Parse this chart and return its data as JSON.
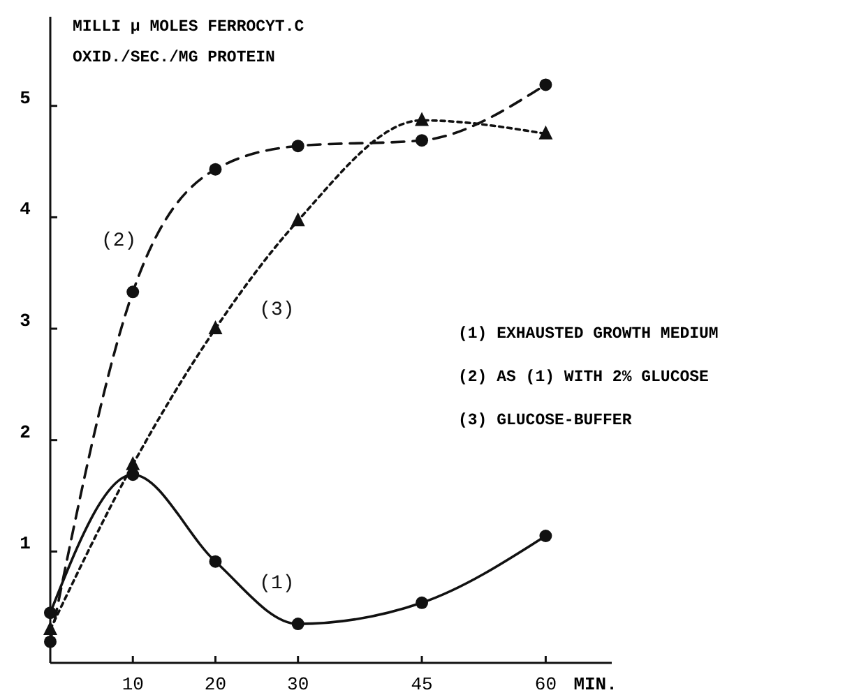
{
  "chart_data": {
    "type": "line",
    "ylabel": "MILLI μ MOLES FERROCYT.C\nOXID./SEC./MG PROTEIN",
    "xlabel": "MIN.",
    "x": [
      0,
      10,
      20,
      30,
      45,
      60
    ],
    "xlim": [
      0,
      68
    ],
    "xticks": [
      10,
      20,
      30,
      45,
      60
    ],
    "ylim": [
      0,
      5.8
    ],
    "yticks": [
      1,
      2,
      3,
      4,
      5
    ],
    "grid": false,
    "series": [
      {
        "name": "(1)",
        "color": "#111111",
        "values": [
          0.45,
          1.69,
          0.91,
          0.35,
          0.54,
          1.14
        ],
        "marker": "circle",
        "line_style": "solid"
      },
      {
        "name": "(2)",
        "color": "#111111",
        "values": [
          0.19,
          3.33,
          4.43,
          4.64,
          4.69,
          5.19
        ],
        "marker": "circle",
        "line_style": "dashed"
      },
      {
        "name": "(3)",
        "color": "#111111",
        "values": [
          0.3,
          1.78,
          3.0,
          3.97,
          4.87,
          4.75
        ],
        "marker": "triangle",
        "line_style": "dotted"
      }
    ],
    "annotations": [
      "(1) EXHAUSTED GROWTH MEDIUM",
      "(2) AS (1) WITH 2% GLUCOSE",
      "(3) GLUCOSE-BUFFER"
    ]
  }
}
